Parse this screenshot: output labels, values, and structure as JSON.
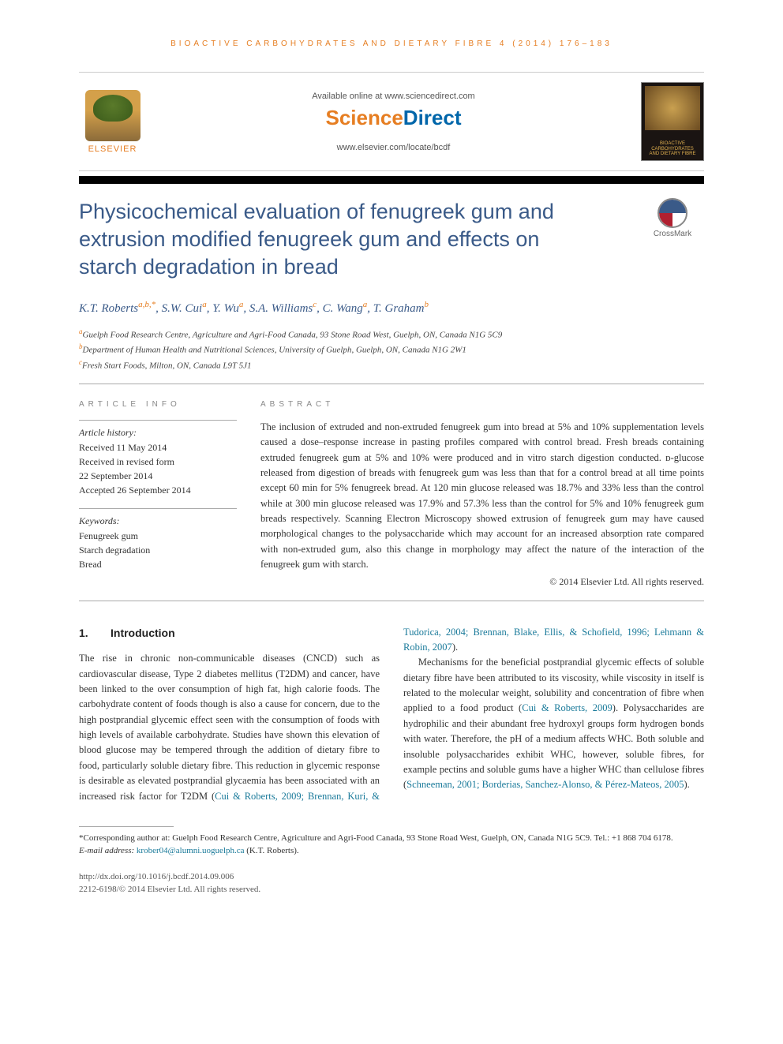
{
  "running_head": "Bioactive Carbohydrates and Dietary Fibre 4 (2014) 176–183",
  "banner": {
    "publisher_name": "ELSEVIER",
    "available_text": "Available online at www.sciencedirect.com",
    "brand_part1": "Science",
    "brand_part2": "Direct",
    "journal_url": "www.elsevier.com/locate/bcdf",
    "cover_line1": "BIOACTIVE",
    "cover_line2": "CARBOHYDRATES",
    "cover_line3": "AND DIETARY FIBRE"
  },
  "crossmark_label": "CrossMark",
  "title": "Physicochemical evaluation of fenugreek gum and extrusion modified fenugreek gum and effects on starch degradation in bread",
  "authors_html": "K.T. Roberts<sup class='aff'>a,b,*</sup>, S.W. Cui<sup class='aff'>a</sup>, Y. Wu<sup class='aff'>a</sup>, S.A. Williams<sup class='aff'>c</sup>, C. Wang<sup class='aff'>a</sup>, T. Graham<sup class='aff'>b</sup>",
  "affiliations": [
    {
      "lbl": "a",
      "text": "Guelph Food Research Centre, Agriculture and Agri-Food Canada, 93 Stone Road West, Guelph, ON, Canada N1G 5C9"
    },
    {
      "lbl": "b",
      "text": "Department of Human Health and Nutritional Sciences, University of Guelph, Guelph, ON, Canada N1G 2W1"
    },
    {
      "lbl": "c",
      "text": "Fresh Start Foods, Milton, ON, Canada L9T 5J1"
    }
  ],
  "info": {
    "heading": "article info",
    "history_label": "Article history:",
    "history_lines": [
      "Received 11 May 2014",
      "Received in revised form",
      "22 September 2014",
      "Accepted 26 September 2014"
    ],
    "keywords_label": "Keywords:",
    "keywords": [
      "Fenugreek gum",
      "Starch degradation",
      "Bread"
    ]
  },
  "abstract": {
    "heading": "abstract",
    "text": "The inclusion of extruded and non-extruded fenugreek gum into bread at 5% and 10% supplementation levels caused a dose–response increase in pasting profiles compared with control bread. Fresh breads containing extruded fenugreek gum at 5% and 10% were produced and in vitro starch digestion conducted. ᴅ-glucose released from digestion of breads with fenugreek gum was less than that for a control bread at all time points except 60 min for 5% fenugreek bread. At 120 min glucose released was 18.7% and 33% less than the control while at 300 min glucose released was 17.9% and 57.3% less than the control for 5% and 10% fenugreek gum breads respectively. Scanning Electron Microscopy showed extrusion of fenugreek gum may have caused morphological changes to the polysaccharide which may account for an increased absorption rate compared with non-extruded gum, also this change in morphology may affect the nature of the interaction of the fenugreek gum with starch.",
    "copyright": "© 2014 Elsevier Ltd. All rights reserved."
  },
  "body": {
    "section_num": "1.",
    "section_title": "Introduction",
    "para1": "The rise in chronic non-communicable diseases (CNCD) such as cardiovascular disease, Type 2 diabetes mellitus (T2DM) and cancer, have been linked to the over consumption of high fat, high calorie foods. The carbohydrate content of foods though is also a cause for concern, due to the high postprandial glycemic effect seen with the consumption of foods with high levels of available carbohydrate. Studies have shown this elevation of blood glucose may be tempered through the addition of dietary fibre to food, particularly soluble dietary fibre. This reduction in glycemic response is desirable as elevated postprandial glycaemia has been associated with an increased risk factor for",
    "para1_tail_pre": "T2DM (",
    "para1_cites": "Cui & Roberts, 2009; Brennan, Kuri, & Tudorica, 2004; Brennan, Blake, Ellis, & Schofield, 1996; Lehmann & Robin, 2007",
    "para1_tail_post": ").",
    "para2_pre": "Mechanisms for the beneficial postprandial glycemic effects of soluble dietary fibre have been attributed to its viscosity, while viscosity in itself is related to the molecular weight, solubility and concentration of fibre when applied to a food product (",
    "para2_cite1": "Cui & Roberts, 2009",
    "para2_mid": "). Polysaccharides are hydrophilic and their abundant free hydroxyl groups form hydrogen bonds with water. Therefore, the pH of a medium affects WHC. Both soluble and insoluble polysaccharides exhibit WHC, however, soluble fibres, for example pectins and soluble gums have a higher WHC than cellulose fibres (",
    "para2_cite2": "Schneeman, 2001; Borderias, Sanchez-Alonso, & Pérez-Mateos, 2005",
    "para2_post": ")."
  },
  "footnotes": {
    "corresponding": "*Corresponding author at: Guelph Food Research Centre, Agriculture and Agri-Food Canada, 93 Stone Road West, Guelph, ON, Canada N1G 5C9. Tel.: +1 868 704 6178.",
    "email_label": "E-mail address:",
    "email": "krober04@alumni.uoguelph.ca",
    "email_author": "(K.T. Roberts)."
  },
  "doi": {
    "url": "http://dx.doi.org/10.1016/j.bcdf.2014.09.006",
    "issn_line": "2212-6198/© 2014 Elsevier Ltd. All rights reserved."
  },
  "colors": {
    "accent_orange": "#e67e22",
    "title_blue": "#3a5a88",
    "link_teal": "#1a7a9a",
    "text": "#333333",
    "rule": "#aaaaaa"
  }
}
